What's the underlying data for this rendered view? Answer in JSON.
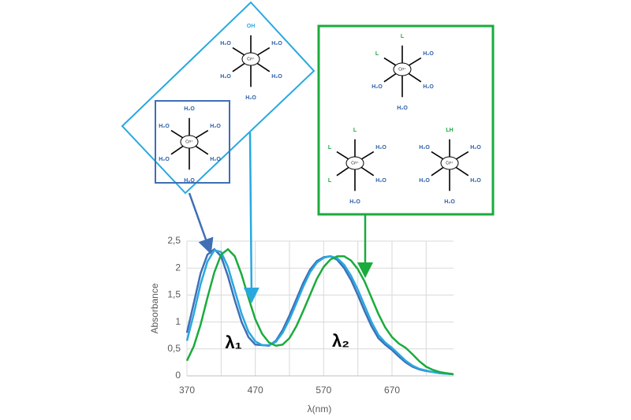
{
  "chart_data": {
    "type": "line",
    "y_label": "Absorbance",
    "x_label": "λ(nm)",
    "x": [
      370,
      380,
      390,
      400,
      410,
      420,
      430,
      440,
      450,
      460,
      470,
      480,
      490,
      500,
      510,
      520,
      530,
      540,
      550,
      560,
      570,
      580,
      590,
      600,
      610,
      620,
      630,
      640,
      650,
      660,
      670,
      680,
      690,
      700,
      710,
      720,
      730,
      740,
      750,
      760
    ],
    "series": [
      {
        "color": "#3f6fb5",
        "values": [
          0.8,
          1.35,
          1.9,
          2.25,
          2.35,
          2.22,
          1.85,
          1.4,
          1.0,
          0.72,
          0.58,
          0.57,
          0.56,
          0.65,
          0.85,
          1.12,
          1.42,
          1.72,
          1.97,
          2.13,
          2.2,
          2.22,
          2.15,
          2.0,
          1.78,
          1.5,
          1.2,
          0.92,
          0.7,
          0.58,
          0.48,
          0.36,
          0.25,
          0.17,
          0.12,
          0.09,
          0.07,
          0.05,
          0.04,
          0.03
        ]
      },
      {
        "color": "#29a8e0",
        "values": [
          0.65,
          1.15,
          1.7,
          2.12,
          2.33,
          2.3,
          2.02,
          1.58,
          1.15,
          0.82,
          0.64,
          0.57,
          0.57,
          0.63,
          0.8,
          1.05,
          1.35,
          1.65,
          1.92,
          2.1,
          2.19,
          2.22,
          2.18,
          2.06,
          1.86,
          1.6,
          1.3,
          1.0,
          0.76,
          0.62,
          0.52,
          0.4,
          0.28,
          0.19,
          0.13,
          0.1,
          0.07,
          0.05,
          0.04,
          0.03
        ]
      },
      {
        "color": "#1aab3c",
        "values": [
          0.28,
          0.55,
          0.95,
          1.45,
          1.92,
          2.25,
          2.35,
          2.22,
          1.88,
          1.45,
          1.05,
          0.78,
          0.62,
          0.56,
          0.58,
          0.7,
          0.92,
          1.2,
          1.5,
          1.8,
          2.02,
          2.16,
          2.22,
          2.22,
          2.14,
          1.98,
          1.75,
          1.45,
          1.15,
          0.9,
          0.72,
          0.6,
          0.52,
          0.4,
          0.27,
          0.17,
          0.11,
          0.07,
          0.05,
          0.03
        ]
      }
    ],
    "xlim": [
      370,
      760
    ],
    "xticks": [
      370,
      470,
      570,
      670
    ],
    "x_minor_grid": [
      420,
      520,
      620,
      720
    ],
    "ylim": [
      0,
      2.5
    ],
    "yticks": [
      0,
      {
        "value": 0.5,
        "label": "0,5"
      },
      1,
      {
        "value": 1.5,
        "label": "1,5"
      },
      2,
      {
        "value": 2.5,
        "label": "2,5"
      }
    ],
    "grid": true,
    "annotations": [
      "λ₁",
      "λ₂"
    ]
  },
  "complexes": [
    {
      "center": "Cr³⁺",
      "ligands": [
        "OH",
        "H₂O",
        "H₂O",
        "H₂O",
        "H₂O",
        "H₂O"
      ],
      "ligand_colors": [
        "#29a8e0",
        "#2b5fa8",
        "#2b5fa8",
        "#2b5fa8",
        "#2b5fa8",
        "#2b5fa8"
      ]
    },
    {
      "center": "Cr³⁺",
      "ligands": [
        "H₂O",
        "H₂O",
        "H₂O",
        "H₂O",
        "H₂O",
        "H₂O"
      ],
      "ligand_colors": [
        "#2b5fa8",
        "#2b5fa8",
        "#2b5fa8",
        "#2b5fa8",
        "#2b5fa8",
        "#2b5fa8"
      ]
    },
    {
      "center": "Cr³⁺",
      "ligands": [
        "L",
        "H₂O",
        "H₂O",
        "H₂O",
        "H₂O",
        "L"
      ],
      "ligand_colors": [
        "#1aab3c",
        "#2b5fa8",
        "#2b5fa8",
        "#2b5fa8",
        "#2b5fa8",
        "#1aab3c"
      ]
    },
    {
      "center": "Cr³⁺",
      "ligands": [
        "L",
        "H₂O",
        "H₂O",
        "H₂O",
        "L",
        "L"
      ],
      "ligand_colors": [
        "#1aab3c",
        "#2b5fa8",
        "#2b5fa8",
        "#2b5fa8",
        "#1aab3c",
        "#1aab3c"
      ]
    },
    {
      "center": "Cr³⁺",
      "ligands": [
        "LH",
        "H₂O",
        "H₂O",
        "H₂O",
        "H₂O",
        "H₂O"
      ],
      "ligand_colors": [
        "#1aab3c",
        "#2b5fa8",
        "#2b5fa8",
        "#2b5fa8",
        "#2b5fa8",
        "#2b5fa8"
      ]
    }
  ]
}
